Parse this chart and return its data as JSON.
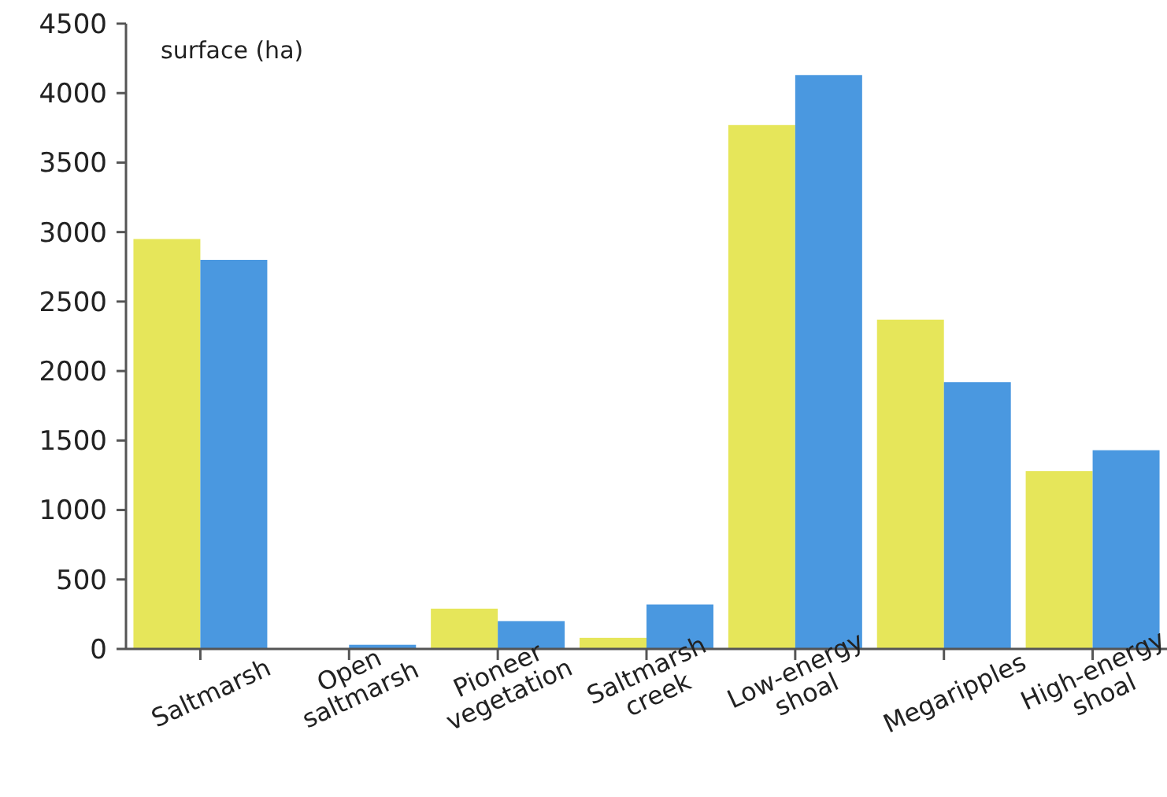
{
  "chart_data": {
    "type": "bar",
    "ylabel": "surface (ha)",
    "categories": [
      "Saltmarsh",
      "Open saltmarsh",
      "Pioneer vegetation",
      "Saltmarsh creek",
      "Low-energy shoal",
      "Megaripples",
      "High-energy shoal"
    ],
    "series": [
      {
        "color": "#e6e65a",
        "values": [
          2950,
          0,
          290,
          80,
          3770,
          2370,
          1280
        ]
      },
      {
        "color": "#4a98e0",
        "values": [
          2800,
          30,
          200,
          320,
          4130,
          1920,
          1430
        ]
      }
    ],
    "ylim": [
      0,
      4500
    ],
    "yticks": [
      0,
      500,
      1000,
      1500,
      2000,
      2500,
      3000,
      3500,
      4000,
      4500
    ],
    "grid": false
  }
}
